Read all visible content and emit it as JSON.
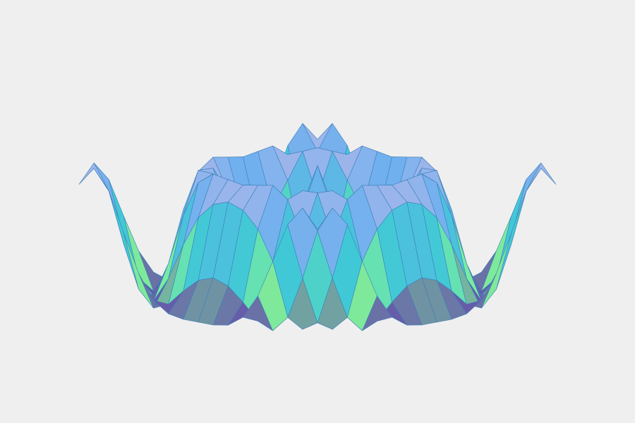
{
  "chart_data": {
    "type": "surface",
    "colorscale": [
      "#5a0fb0",
      "#7ff29a",
      "#3fc7d8",
      "#6fb0ee",
      "#b4b8ea"
    ],
    "line_color": "#3d7fb8",
    "z": [
      [
        0.72,
        1,
        0.71,
        0.12,
        -0.44,
        -0.8,
        -0.96,
        -1,
        -1,
        -1,
        -0.96,
        -0.8,
        -0.44,
        0.12,
        0.71,
        1,
        0.72
      ],
      [
        1,
        0.62,
        -0.13,
        -0.76,
        -1,
        -0.9,
        -0.66,
        -0.46,
        -0.38,
        -0.46,
        -0.66,
        -0.9,
        -1,
        -0.76,
        -0.13,
        0.62,
        1
      ],
      [
        0.71,
        -0.13,
        -0.84,
        -0.98,
        -0.6,
        -0.05,
        0.39,
        0.63,
        0.71,
        0.63,
        0.39,
        -0.05,
        -0.6,
        -0.98,
        -0.84,
        -0.13,
        0.71
      ],
      [
        0.12,
        -0.76,
        -0.98,
        -0.46,
        0.3,
        0.83,
        1,
        0.96,
        0.92,
        0.96,
        1,
        0.83,
        0.3,
        -0.46,
        -0.98,
        -0.76,
        0.12
      ],
      [
        -0.44,
        -1,
        -0.6,
        0.3,
        0.93,
        0.92,
        0.53,
        0.14,
        0,
        0.14,
        0.53,
        0.92,
        0.93,
        0.3,
        -0.6,
        -1,
        -0.44
      ],
      [
        -0.8,
        -0.9,
        -0.05,
        0.83,
        0.92,
        0.28,
        -0.45,
        -0.83,
        -0.92,
        -0.83,
        -0.45,
        0.28,
        0.92,
        0.83,
        -0.05,
        -0.9,
        -0.8
      ],
      [
        -0.96,
        -0.66,
        0.39,
        1,
        0.53,
        -0.45,
        -0.98,
        -0.87,
        -0.71,
        -0.87,
        -0.98,
        -0.45,
        0.53,
        1,
        0.39,
        -0.66,
        -0.96
      ],
      [
        -1,
        -0.46,
        0.63,
        0.96,
        0.14,
        -0.83,
        -0.87,
        -0.1,
        0.38,
        -0.1,
        -0.87,
        -0.83,
        0.14,
        0.96,
        0.63,
        -0.46,
        -1
      ],
      [
        -1,
        -0.38,
        0.71,
        0.92,
        0,
        -0.92,
        -0.71,
        0.38,
        1,
        0.38,
        -0.71,
        -0.92,
        0,
        0.92,
        0.71,
        -0.38,
        -1
      ],
      [
        -1,
        -0.46,
        0.63,
        0.96,
        0.14,
        -0.83,
        -0.87,
        -0.1,
        0.38,
        -0.1,
        -0.87,
        -0.83,
        0.14,
        0.96,
        0.63,
        -0.46,
        -1
      ],
      [
        -0.96,
        -0.66,
        0.39,
        1,
        0.53,
        -0.45,
        -0.98,
        -0.87,
        -0.71,
        -0.87,
        -0.98,
        -0.45,
        0.53,
        1,
        0.39,
        -0.66,
        -0.96
      ],
      [
        -0.8,
        -0.9,
        -0.05,
        0.83,
        0.92,
        0.28,
        -0.45,
        -0.83,
        -0.92,
        -0.83,
        -0.45,
        0.28,
        0.92,
        0.83,
        -0.05,
        -0.9,
        -0.8
      ],
      [
        -0.44,
        -1,
        -0.6,
        0.3,
        0.93,
        0.92,
        0.53,
        0.14,
        0,
        0.14,
        0.53,
        0.92,
        0.93,
        0.3,
        -0.6,
        -1,
        -0.44
      ],
      [
        0.12,
        -0.76,
        -0.98,
        -0.46,
        0.3,
        0.83,
        1,
        0.96,
        0.92,
        0.96,
        1,
        0.83,
        0.3,
        -0.46,
        -0.98,
        -0.76,
        0.12
      ],
      [
        0.71,
        -0.13,
        -0.84,
        -0.98,
        -0.6,
        -0.05,
        0.39,
        0.63,
        0.71,
        0.63,
        0.39,
        -0.05,
        -0.6,
        -0.98,
        -0.84,
        -0.13,
        0.71
      ],
      [
        1,
        0.62,
        -0.13,
        -0.76,
        -1,
        -0.9,
        -0.66,
        -0.46,
        -0.38,
        -0.46,
        -0.66,
        -0.9,
        -1,
        -0.76,
        -0.13,
        0.62,
        1
      ],
      [
        0.72,
        1,
        0.71,
        0.12,
        -0.44,
        -0.8,
        -0.96,
        -1,
        -1,
        -1,
        -0.96,
        -0.8,
        -0.44,
        0.12,
        0.71,
        1,
        0.72
      ]
    ]
  }
}
